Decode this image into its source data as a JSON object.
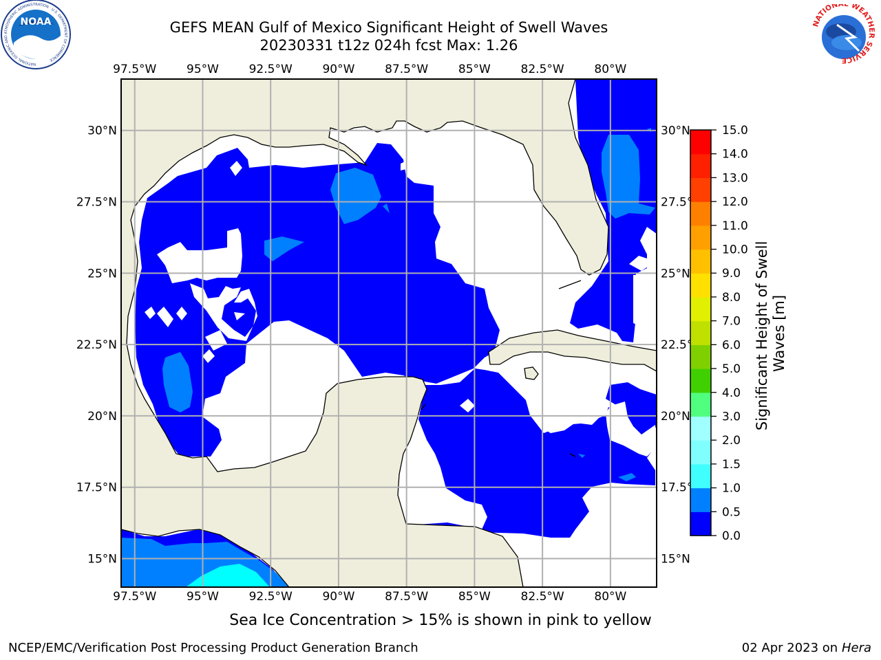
{
  "header": {
    "title": "GEFS MEAN Gulf of Mexico Significant Height of Swell Waves",
    "subtitle": "20230331 t12z 024h fcst   Max: 1.26",
    "left_logo_text": "NOAA",
    "left_logo_ring_text": "NATIONAL OCEANIC AND ATMOSPHERIC ADMINISTRATION · U.S. DEPARTMENT OF COMMERCE",
    "right_logo_ring_text": "NATIONAL WEATHER SERVICE"
  },
  "map": {
    "lon_ticks": [
      "97.5°W",
      "95°W",
      "92.5°W",
      "90°W",
      "87.5°W",
      "85°W",
      "82.5°W",
      "80°W"
    ],
    "lon_values": [
      -97.5,
      -95,
      -92.5,
      -90,
      -87.5,
      -85,
      -82.5,
      -80
    ],
    "lat_ticks": [
      "30°N",
      "27.5°N",
      "25°N",
      "22.5°N",
      "20°N",
      "17.5°N",
      "15°N"
    ],
    "lat_values": [
      30,
      27.5,
      25,
      22.5,
      20,
      17.5,
      15
    ],
    "lon_range": [
      -98,
      -78.3
    ],
    "lat_range": [
      14,
      31.8
    ],
    "grid": true,
    "land_color": "#efeedc",
    "zero_color": "#ffffff",
    "band_color_0_0_5": "#0000ff",
    "band_color_0_5_1_0": "#0080ff",
    "band_color_1_0_1_5": "#00ffff"
  },
  "colorbar": {
    "label_line1": "Significant Height of Swell",
    "label_line2": "Waves [m]",
    "tick_labels": [
      "15.0",
      "14.0",
      "13.0",
      "12.0",
      "11.0",
      "10.0",
      "9.0",
      "8.0",
      "7.0",
      "6.0",
      "5.0",
      "4.0",
      "3.0",
      "2.0",
      "1.5",
      "1.0",
      "0.5",
      "0.0"
    ],
    "colors": [
      "#0000ff",
      "#0080ff",
      "#00ffff",
      "#40ffff",
      "#80ffff",
      "#a0ffff",
      "#50ff80",
      "#00e000",
      "#40d000",
      "#80d000",
      "#c0e000",
      "#e0f000",
      "#ffff00",
      "#ffe000",
      "#ffc000",
      "#ffa000",
      "#ff8000",
      "#ff6000",
      "#ff4000",
      "#ff2000",
      "#ff0000"
    ]
  },
  "footer": {
    "ice_note": "Sea Ice Concentration > 15% is shown in pink to yellow",
    "producer": "NCEP/EMC/Verification Post Processing Product Generation Branch",
    "date": "02 Apr 2023 on",
    "host": "Hera"
  }
}
